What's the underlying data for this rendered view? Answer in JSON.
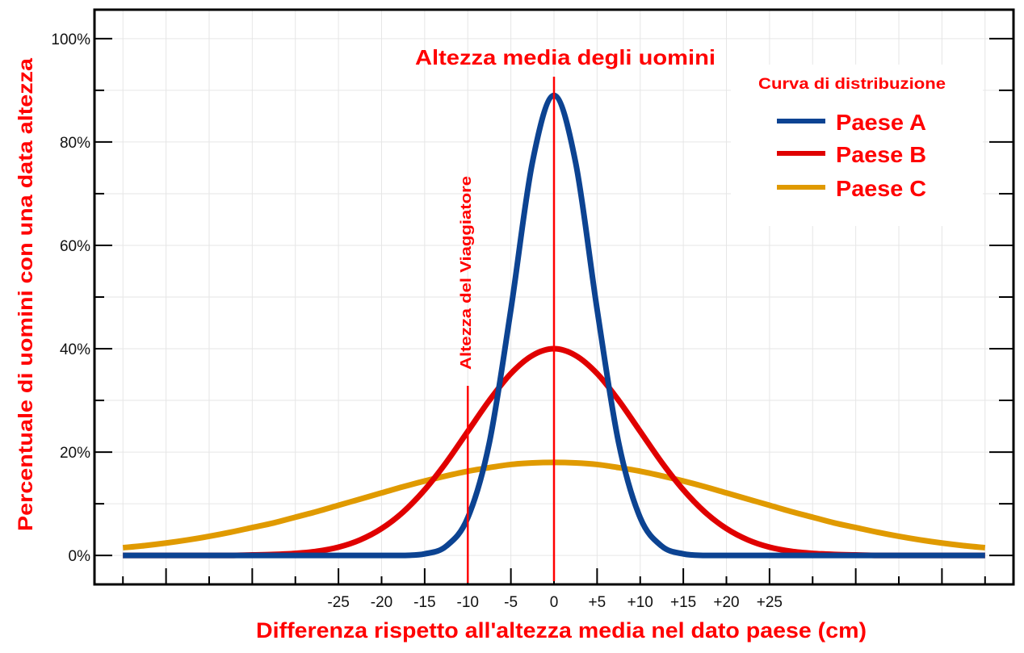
{
  "chart_data": {
    "type": "line",
    "title": "Altezza media degli uomini",
    "xlabel": "Differenza rispetto all'altezza media nel dato paese (cm)",
    "ylabel": "Percentuale di uomini con una data altezza",
    "xlim": [
      -53.3,
      53.3
    ],
    "ylim": [
      -5.6,
      105.6
    ],
    "grid": true,
    "x_tick_labels": [
      {
        "value": -25,
        "label": "-25"
      },
      {
        "value": -20,
        "label": "-20"
      },
      {
        "value": -15,
        "label": "-15"
      },
      {
        "value": -10,
        "label": "-10"
      },
      {
        "value": -5,
        "label": "-5"
      },
      {
        "value": 0,
        "label": "0"
      },
      {
        "value": 5,
        "label": "+5"
      },
      {
        "value": 10,
        "label": "+10"
      },
      {
        "value": 15,
        "label": "+15"
      },
      {
        "value": 20,
        "label": "+20"
      },
      {
        "value": 25,
        "label": "+25"
      }
    ],
    "y_tick_labels": [
      {
        "value": 0,
        "label": "0%"
      },
      {
        "value": 20,
        "label": "20%"
      },
      {
        "value": 40,
        "label": "40%"
      },
      {
        "value": 60,
        "label": "60%"
      },
      {
        "value": 80,
        "label": "80%"
      },
      {
        "value": 100,
        "label": "100%"
      }
    ],
    "legend": {
      "title": "Curva di distribuzione",
      "position": "top-right"
    },
    "x": [
      -50,
      -47.5,
      -45,
      -42.5,
      -40,
      -37.5,
      -35,
      -32.5,
      -30,
      -27.5,
      -25,
      -22.5,
      -20,
      -17.5,
      -15,
      -12.5,
      -10,
      -7.5,
      -5,
      -2.5,
      0,
      2.5,
      5,
      7.5,
      10,
      12.5,
      15,
      17.5,
      20,
      22.5,
      25,
      27.5,
      30,
      32.5,
      35,
      37.5,
      40,
      42.5,
      45,
      47.5,
      50
    ],
    "series": [
      {
        "name": "Paese A",
        "color": "#0c4392",
        "values": [
          0,
          0,
          0,
          0,
          0,
          0,
          0,
          0,
          0,
          0,
          0,
          0,
          0,
          0,
          0.3,
          1.8,
          7.3,
          21.8,
          47.6,
          76.1,
          89,
          76.1,
          47.6,
          21.8,
          7.3,
          1.8,
          0.3,
          0,
          0,
          0,
          0,
          0,
          0,
          0,
          0,
          0,
          0,
          0,
          0,
          0,
          0
        ]
      },
      {
        "name": "Paese B",
        "color": "#e00000",
        "values": [
          0,
          0,
          0,
          0,
          0,
          0,
          0.1,
          0.2,
          0.4,
          0.8,
          1.6,
          3.0,
          5.2,
          8.4,
          12.7,
          18.0,
          24.0,
          30.0,
          35.2,
          38.7,
          40,
          38.7,
          35.2,
          30.0,
          24.0,
          18.0,
          12.7,
          8.4,
          5.2,
          3.0,
          1.6,
          0.8,
          0.4,
          0.2,
          0.1,
          0,
          0,
          0,
          0,
          0,
          0
        ]
      },
      {
        "name": "Paese C",
        "color": "#e09a00",
        "values": [
          1.5,
          1.9,
          2.4,
          3.0,
          3.7,
          4.5,
          5.4,
          6.3,
          7.4,
          8.5,
          9.7,
          10.9,
          12.1,
          13.3,
          14.4,
          15.4,
          16.3,
          17.0,
          17.6,
          17.9,
          18,
          17.9,
          17.6,
          17.0,
          16.3,
          15.4,
          14.4,
          13.3,
          12.1,
          10.9,
          9.7,
          8.5,
          7.4,
          6.3,
          5.4,
          4.5,
          3.7,
          3.0,
          2.4,
          1.9,
          1.5
        ]
      }
    ],
    "annotations": [
      {
        "x": 0,
        "label": "Altezza media degli uomini"
      },
      {
        "x": -10,
        "label": "Altezza del Viaggiatore"
      }
    ],
    "accent_color": "#ff0000"
  }
}
